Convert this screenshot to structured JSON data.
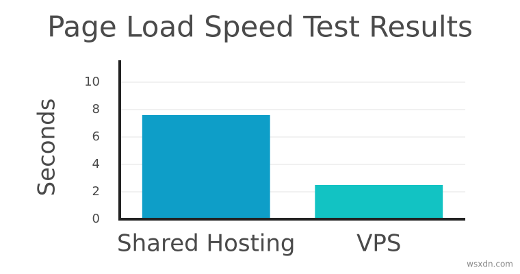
{
  "chart_data": {
    "type": "bar",
    "title": "Page Load Speed Test Results",
    "y_label": "Seconds",
    "categories": [
      "Shared Hosting",
      "VPS"
    ],
    "values": [
      7.6,
      2.5
    ],
    "colors": [
      "#0e9ec8",
      "#12c3c3"
    ],
    "ylim": [
      0,
      11.6
    ],
    "yticks": [
      0,
      2,
      4,
      6,
      8,
      10
    ],
    "grid": true,
    "watermark": "wsxdn.com"
  }
}
